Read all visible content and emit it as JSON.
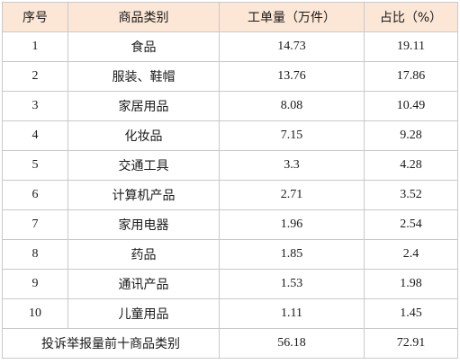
{
  "table": {
    "headers": [
      "序号",
      "商品类别",
      "工单量（万件）",
      "占比（%）"
    ],
    "rows": [
      {
        "index": "1",
        "category": "食品",
        "volume": "14.73",
        "share": "19.11"
      },
      {
        "index": "2",
        "category": "服装、鞋帽",
        "volume": "13.76",
        "share": "17.86"
      },
      {
        "index": "3",
        "category": "家居用品",
        "volume": "8.08",
        "share": "10.49"
      },
      {
        "index": "4",
        "category": "化妆品",
        "volume": "7.15",
        "share": "9.28"
      },
      {
        "index": "5",
        "category": "交通工具",
        "volume": "3.3",
        "share": "4.28"
      },
      {
        "index": "6",
        "category": "计算机产品",
        "volume": "2.71",
        "share": "3.52"
      },
      {
        "index": "7",
        "category": "家用电器",
        "volume": "1.96",
        "share": "2.54"
      },
      {
        "index": "8",
        "category": "药品",
        "volume": "1.85",
        "share": "2.4"
      },
      {
        "index": "9",
        "category": "通讯产品",
        "volume": "1.53",
        "share": "1.98"
      },
      {
        "index": "10",
        "category": "儿童用品",
        "volume": "1.11",
        "share": "1.45"
      }
    ],
    "total": {
      "label": "投诉举报量前十商品类别",
      "volume": "56.18",
      "share": "72.91"
    }
  }
}
